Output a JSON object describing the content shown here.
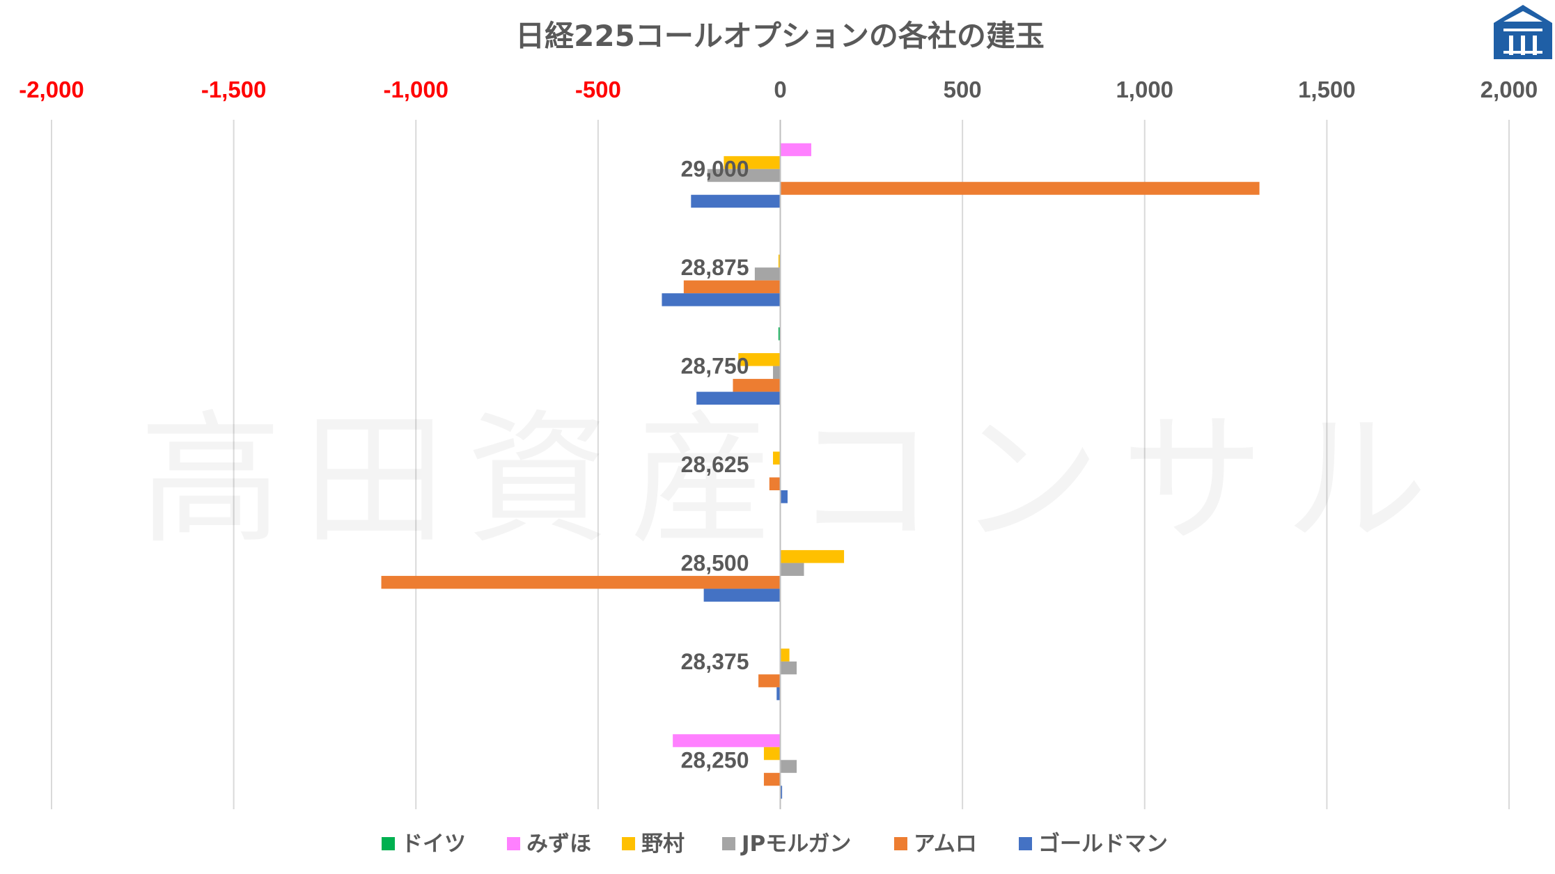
{
  "watermark": "高田資産コンサル",
  "logo": "takata-logo-icon",
  "chart_data": {
    "type": "bar",
    "orientation": "horizontal",
    "title": "日経225コールオプションの各社の建玉",
    "xlabel": "",
    "ylabel": "",
    "xlim": [
      -2000,
      2000
    ],
    "xticks": [
      -2000,
      -1500,
      -1000,
      -500,
      0,
      500,
      1000,
      1500,
      2000
    ],
    "xtick_labels": [
      "-2,000",
      "-1,500",
      "-1,000",
      "-500",
      "0",
      "500",
      "1,000",
      "1,500",
      "2,000"
    ],
    "negative_tick_color": "#ff0000",
    "positive_tick_color": "#595959",
    "grid": true,
    "legend_position": "bottom",
    "categories": [
      "29,000",
      "28,875",
      "28,750",
      "28,625",
      "28,500",
      "28,375",
      "28,250"
    ],
    "series": [
      {
        "name": "ドイツ",
        "color": "#00b050",
        "values": [
          0,
          0,
          -5,
          0,
          0,
          0,
          0
        ]
      },
      {
        "name": "みずほ",
        "color": "#ff80ff",
        "values": [
          85,
          0,
          0,
          0,
          0,
          0,
          -295
        ]
      },
      {
        "name": "野村",
        "color": "#ffc000",
        "values": [
          -155,
          -5,
          -115,
          -20,
          175,
          25,
          -45
        ]
      },
      {
        "name": "JPモルガン",
        "color": "#a5a5a5",
        "values": [
          -200,
          -70,
          -20,
          0,
          65,
          45,
          45
        ]
      },
      {
        "name": "アムロ",
        "color": "#ed7d31",
        "values": [
          1315,
          -265,
          -130,
          -30,
          -1095,
          -60,
          -45
        ]
      },
      {
        "name": "ゴールドマン",
        "color": "#4472c4",
        "values": [
          -245,
          -325,
          -230,
          20,
          -210,
          -10,
          5
        ]
      }
    ]
  }
}
